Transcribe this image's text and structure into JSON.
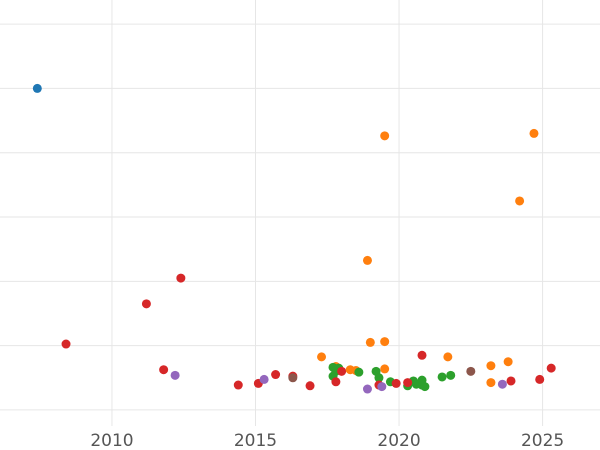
{
  "chart_data": {
    "type": "scatter",
    "title": "",
    "xlabel": "",
    "ylabel": "",
    "xlim": [
      2006.1,
      2027.0
    ],
    "ylim": [
      0,
      530
    ],
    "x_ticks": [
      2010,
      2015,
      2020,
      2025
    ],
    "x_tick_labels": [
      "2010",
      "2015",
      "2020",
      "2025"
    ],
    "y_gridlines": [
      20,
      100,
      180,
      260,
      340,
      420,
      500
    ],
    "grid": true,
    "legend": "none",
    "series": [
      {
        "color": "#1f77b4",
        "points": [
          [
            2007.4,
            420
          ]
        ]
      },
      {
        "color": "#ff7f0e",
        "points": [
          [
            2017.3,
            86
          ],
          [
            2017.8,
            74
          ],
          [
            2018.3,
            70
          ],
          [
            2018.5,
            69
          ],
          [
            2018.9,
            206
          ],
          [
            2019.0,
            104
          ],
          [
            2019.5,
            361
          ],
          [
            2019.5,
            105
          ],
          [
            2019.5,
            71
          ],
          [
            2021.7,
            86
          ],
          [
            2023.2,
            75
          ],
          [
            2023.2,
            54
          ],
          [
            2023.8,
            80
          ],
          [
            2024.2,
            280
          ],
          [
            2024.7,
            364
          ]
        ]
      },
      {
        "color": "#2ca02c",
        "points": [
          [
            2017.7,
            73
          ],
          [
            2017.8,
            68
          ],
          [
            2017.9,
            72
          ],
          [
            2017.7,
            62
          ],
          [
            2018.6,
            67
          ],
          [
            2019.2,
            68
          ],
          [
            2019.3,
            60
          ],
          [
            2019.7,
            55
          ],
          [
            2020.3,
            50
          ],
          [
            2020.5,
            56
          ],
          [
            2020.6,
            52
          ],
          [
            2020.8,
            57
          ],
          [
            2020.8,
            51
          ],
          [
            2020.9,
            49
          ],
          [
            2021.5,
            61
          ],
          [
            2021.8,
            63
          ]
        ]
      },
      {
        "color": "#d62728",
        "points": [
          [
            2008.4,
            102
          ],
          [
            2011.2,
            152
          ],
          [
            2011.8,
            70
          ],
          [
            2012.4,
            184
          ],
          [
            2014.4,
            51
          ],
          [
            2015.1,
            53
          ],
          [
            2015.7,
            64
          ],
          [
            2016.3,
            62
          ],
          [
            2016.9,
            50
          ],
          [
            2017.8,
            55
          ],
          [
            2018.0,
            68
          ],
          [
            2019.3,
            51
          ],
          [
            2019.9,
            53
          ],
          [
            2020.3,
            54
          ],
          [
            2020.8,
            88
          ],
          [
            2023.9,
            56
          ],
          [
            2024.9,
            58
          ],
          [
            2025.3,
            72
          ]
        ]
      },
      {
        "color": "#9467bd",
        "points": [
          [
            2012.2,
            63
          ],
          [
            2015.3,
            58
          ],
          [
            2018.9,
            46
          ],
          [
            2019.4,
            49
          ],
          [
            2023.6,
            52
          ]
        ]
      },
      {
        "color": "#8c564b",
        "points": [
          [
            2016.3,
            60
          ],
          [
            2022.5,
            68
          ]
        ]
      }
    ]
  }
}
